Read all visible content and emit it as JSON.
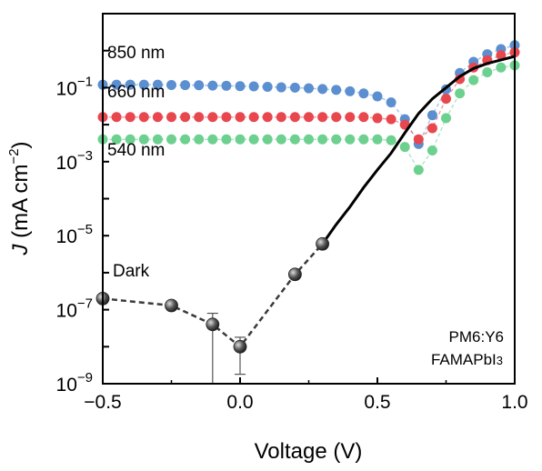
{
  "chart_data": {
    "type": "scatter",
    "xlabel": "Voltage (V)",
    "ylabel": {
      "italic": "J",
      "rest": " (mA cm",
      "sup": "−2",
      "close": ")"
    },
    "xlim": [
      -0.5,
      1.0
    ],
    "ylim": [
      1e-09,
      10
    ],
    "yscale": "log",
    "grid": false,
    "x_ticks": [
      {
        "value": -0.5,
        "label": "−0.5"
      },
      {
        "value": 0.0,
        "label": "0.0"
      },
      {
        "value": 0.5,
        "label": "0.5"
      },
      {
        "value": 1.0,
        "label": "1.0"
      }
    ],
    "y_ticks": [
      {
        "value": 0.1,
        "base": "10",
        "exp": "−1"
      },
      {
        "value": 0.001,
        "base": "10",
        "exp": "−3"
      },
      {
        "value": 1e-05,
        "base": "10",
        "exp": "−5"
      },
      {
        "value": 1e-07,
        "base": "10",
        "exp": "−7"
      },
      {
        "value": 1e-09,
        "base": "10",
        "exp": "−9"
      }
    ],
    "annotations": {
      "line1": "PM6:Y6",
      "line2": "FAMAPbI",
      "line2_sub": "3"
    },
    "series": [
      {
        "name": "850 nm",
        "color": "#5b8fd0",
        "label_color": "#4a78b8",
        "x": [
          -0.5,
          -0.45,
          -0.4,
          -0.35,
          -0.3,
          -0.25,
          -0.2,
          -0.15,
          -0.1,
          -0.05,
          0.0,
          0.05,
          0.1,
          0.15,
          0.2,
          0.25,
          0.3,
          0.35,
          0.4,
          0.45,
          0.5,
          0.55,
          0.6,
          0.65,
          0.7,
          0.75,
          0.8,
          0.85,
          0.9,
          0.95,
          1.0
        ],
        "y": [
          0.12,
          0.12,
          0.12,
          0.12,
          0.12,
          0.118,
          0.117,
          0.116,
          0.114,
          0.112,
          0.11,
          0.108,
          0.105,
          0.102,
          0.1,
          0.096,
          0.092,
          0.087,
          0.08,
          0.07,
          0.058,
          0.04,
          0.014,
          0.003,
          0.018,
          0.09,
          0.25,
          0.5,
          0.8,
          1.1,
          1.4
        ]
      },
      {
        "name": "660 nm",
        "color": "#e8474e",
        "label_color": "#d93535",
        "x": [
          -0.5,
          -0.45,
          -0.4,
          -0.35,
          -0.3,
          -0.25,
          -0.2,
          -0.15,
          -0.1,
          -0.05,
          0.0,
          0.05,
          0.1,
          0.15,
          0.2,
          0.25,
          0.3,
          0.35,
          0.4,
          0.45,
          0.5,
          0.55,
          0.6,
          0.65,
          0.7,
          0.75,
          0.8,
          0.85,
          0.9,
          0.95,
          1.0
        ],
        "y": [
          0.016,
          0.016,
          0.016,
          0.016,
          0.016,
          0.016,
          0.016,
          0.016,
          0.016,
          0.016,
          0.016,
          0.016,
          0.016,
          0.016,
          0.016,
          0.016,
          0.016,
          0.016,
          0.016,
          0.016,
          0.015,
          0.014,
          0.01,
          0.004,
          0.008,
          0.05,
          0.17,
          0.35,
          0.55,
          0.75,
          0.9
        ]
      },
      {
        "name": "540 nm",
        "color": "#6cd08e",
        "label_color": "#5cc480",
        "x": [
          -0.5,
          -0.45,
          -0.4,
          -0.35,
          -0.3,
          -0.25,
          -0.2,
          -0.15,
          -0.1,
          -0.05,
          0.0,
          0.05,
          0.1,
          0.15,
          0.2,
          0.25,
          0.3,
          0.35,
          0.4,
          0.45,
          0.5,
          0.55,
          0.6,
          0.65,
          0.7,
          0.75,
          0.8,
          0.85,
          0.9,
          0.95,
          1.0
        ],
        "y": [
          0.004,
          0.004,
          0.004,
          0.004,
          0.004,
          0.004,
          0.004,
          0.004,
          0.004,
          0.004,
          0.004,
          0.004,
          0.004,
          0.004,
          0.004,
          0.004,
          0.004,
          0.004,
          0.004,
          0.004,
          0.004,
          0.0038,
          0.0025,
          0.0006,
          0.002,
          0.015,
          0.07,
          0.16,
          0.26,
          0.35,
          0.4
        ]
      },
      {
        "name": "Dark",
        "color": "#3a3a3a",
        "label_color": "#000000",
        "x": [
          -0.5,
          -0.25,
          -0.1,
          0.0,
          0.2,
          0.3
        ],
        "y": [
          2e-07,
          1.3e-07,
          4e-08,
          1e-08,
          9e-07,
          6e-06
        ],
        "err_low": [
          null,
          null,
          1e-09,
          1.8e-09,
          null,
          null
        ],
        "err_high": [
          null,
          null,
          8e-08,
          1.8e-08,
          null,
          null
        ],
        "solid_x": [
          0.3,
          0.35,
          0.4,
          0.45,
          0.5,
          0.55,
          0.6,
          0.65,
          0.7,
          0.75,
          0.8,
          0.85,
          0.9,
          0.95,
          1.0
        ],
        "solid_y": [
          6e-06,
          2e-05,
          6e-05,
          0.0002,
          0.0006,
          0.0017,
          0.006,
          0.02,
          0.05,
          0.1,
          0.2,
          0.33,
          0.45,
          0.56,
          0.7
        ]
      }
    ]
  }
}
